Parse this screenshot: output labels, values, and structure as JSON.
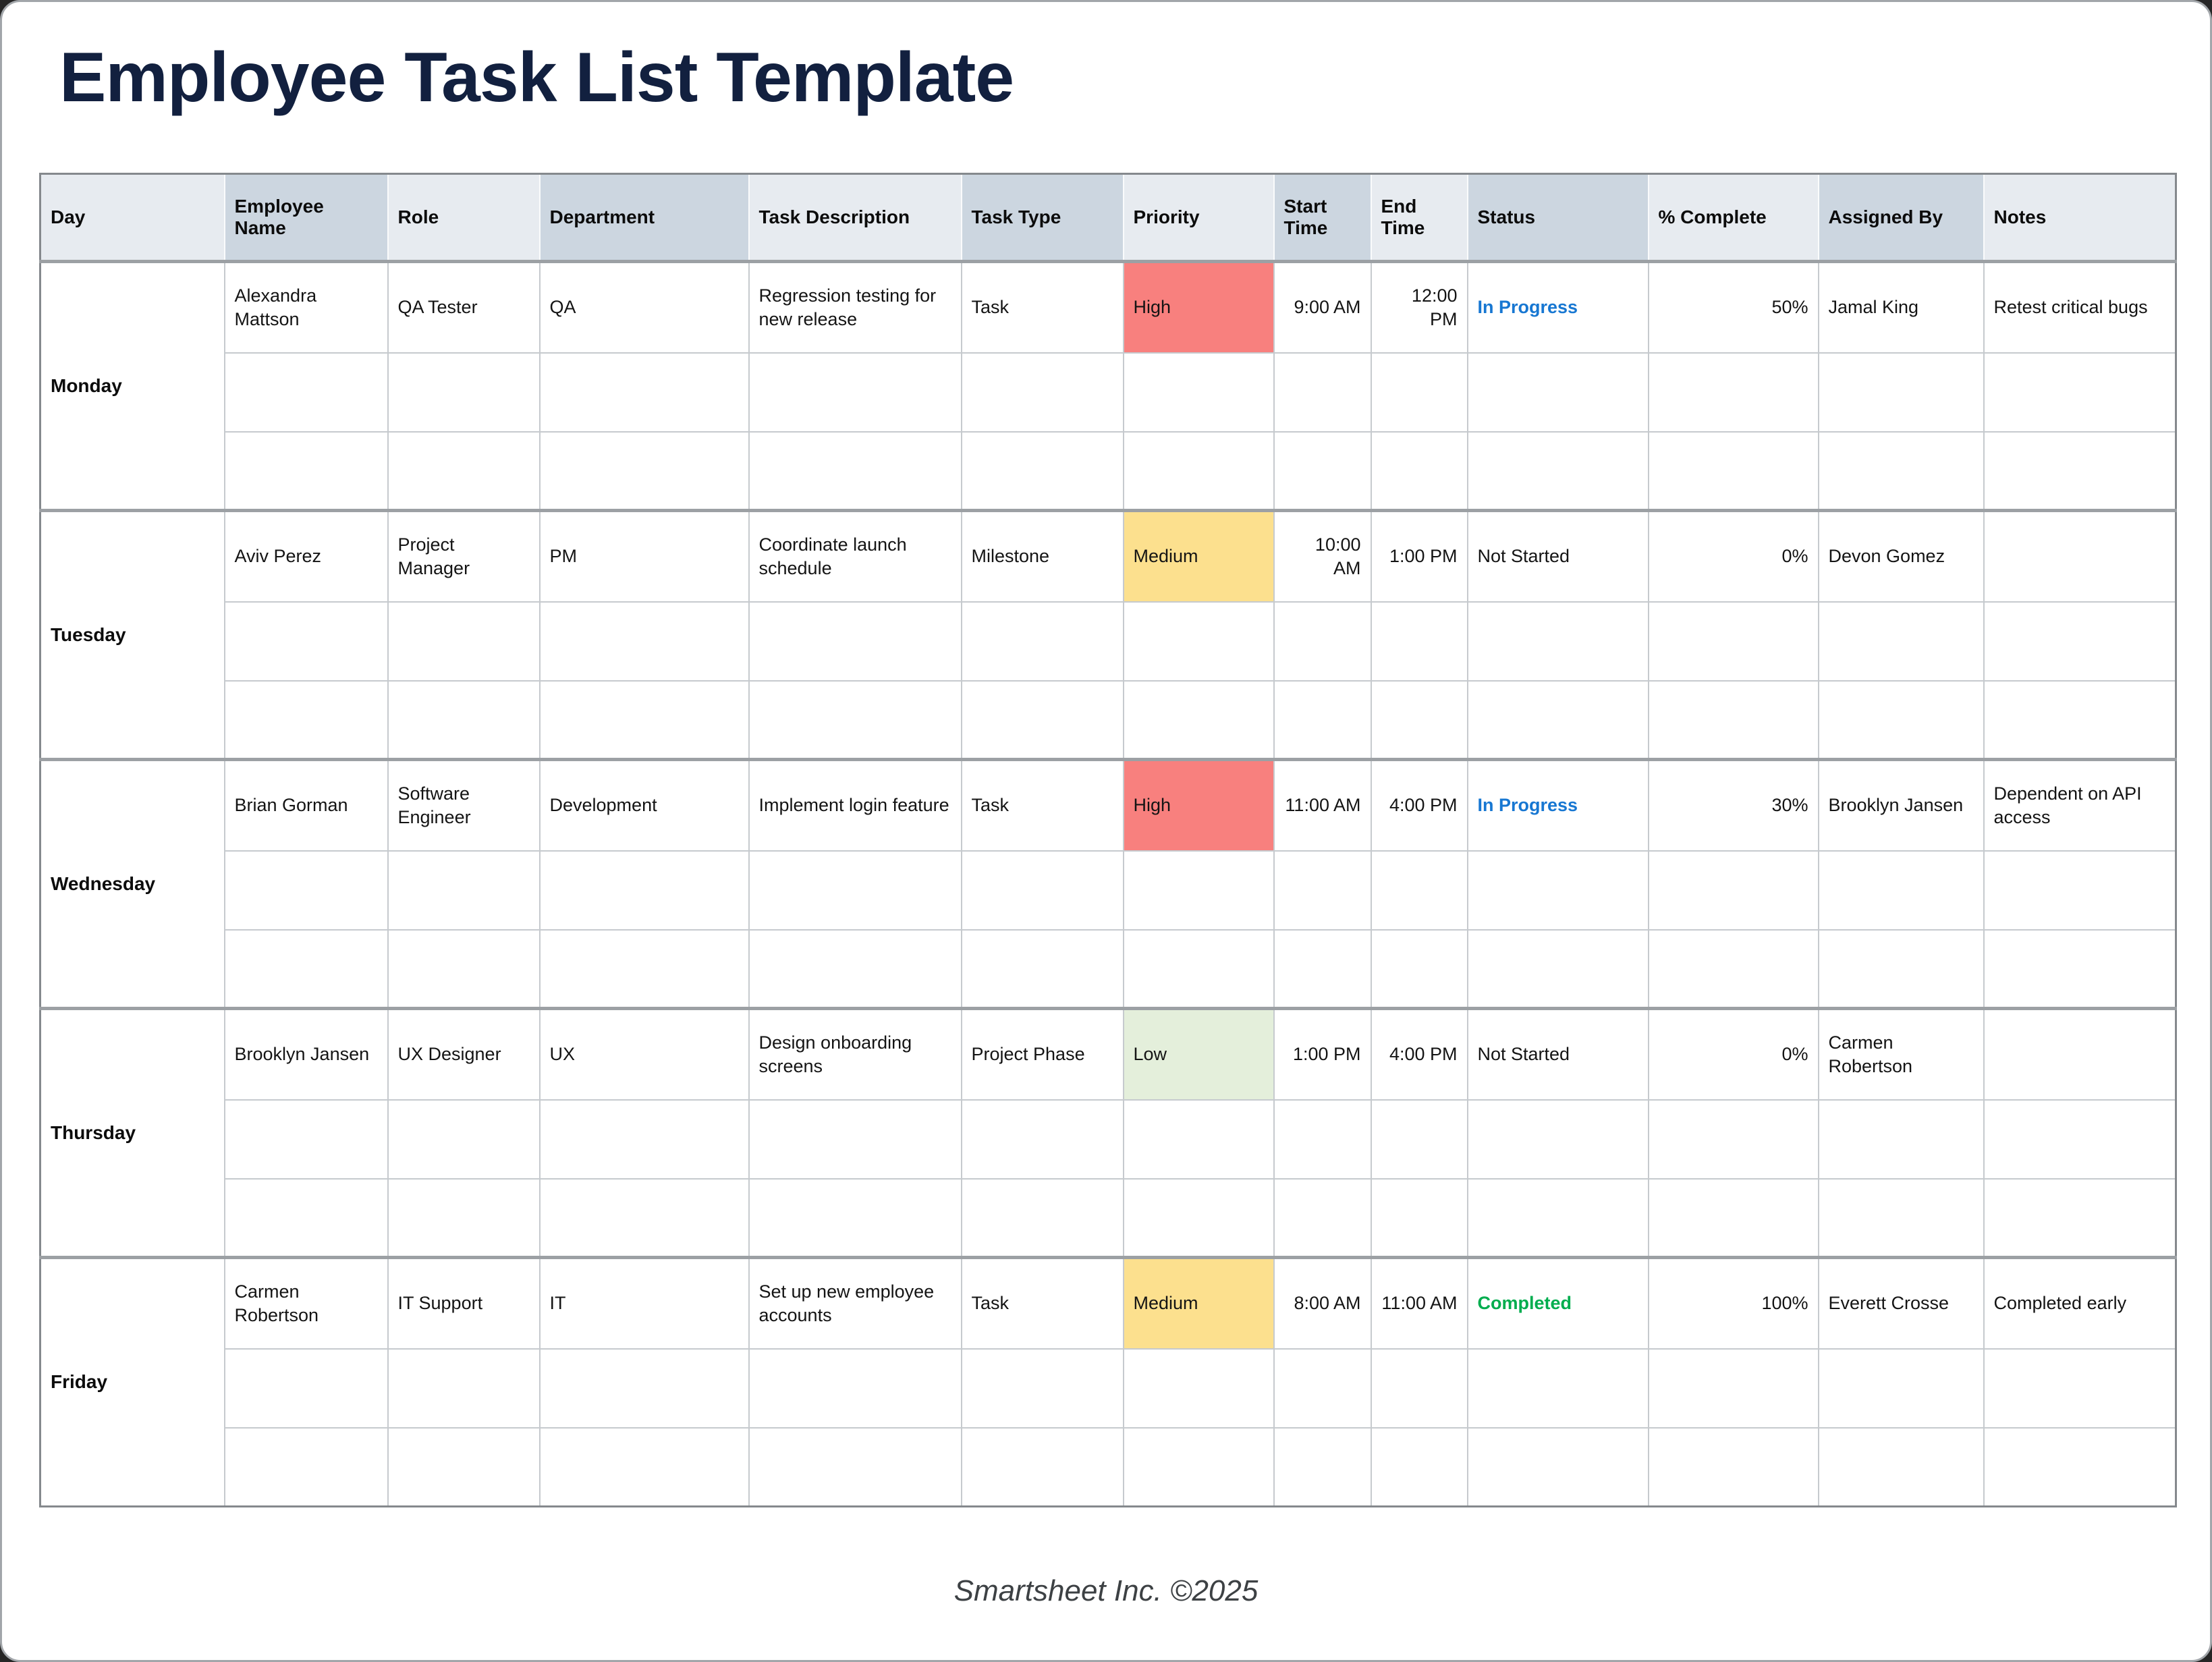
{
  "title": "Employee Task List Template",
  "footer": "Smartsheet Inc. ©2025",
  "colors": {
    "title": "#12203f",
    "table_border": "#85898d",
    "grid_line": "#c6cace",
    "block_line": "#9ca0a4",
    "header_light": "#e7ebf0",
    "header_dark": "#ccd6e0",
    "priority_high": "#f8807e",
    "priority_medium": "#fce08e",
    "priority_low": "#e4efdb",
    "status_in_progress": "#1777d2",
    "status_completed": "#00ad4e",
    "footer_text": "#3d4144"
  },
  "table": {
    "columns": [
      "Day",
      "Employee Name",
      "Role",
      "Department",
      "Task Description",
      "Task Type",
      "Priority",
      "Start Time",
      "End Time",
      "Status",
      "% Complete",
      "Assigned By",
      "Notes"
    ],
    "days": [
      {
        "day": "Monday",
        "rows": [
          {
            "employee": "Alexandra Mattson",
            "role": "QA Tester",
            "department": "QA",
            "task_description": "Regression testing for new release",
            "task_type": "Task",
            "priority": "High",
            "priority_level": "high",
            "start_time": "9:00 AM",
            "end_time": "12:00 PM",
            "status": "In Progress",
            "status_key": "in-progress",
            "percent_complete": "50%",
            "assigned_by": "Jamal King",
            "notes": "Retest critical bugs"
          },
          {},
          {}
        ]
      },
      {
        "day": "Tuesday",
        "rows": [
          {
            "employee": "Aviv Perez",
            "role": "Project Manager",
            "department": "PM",
            "task_description": "Coordinate launch schedule",
            "task_type": "Milestone",
            "priority": "Medium",
            "priority_level": "medium",
            "start_time": "10:00 AM",
            "end_time": "1:00 PM",
            "status": "Not Started",
            "status_key": "not-started",
            "percent_complete": "0%",
            "assigned_by": "Devon Gomez",
            "notes": ""
          },
          {},
          {}
        ]
      },
      {
        "day": "Wednesday",
        "rows": [
          {
            "employee": "Brian Gorman",
            "role": "Software Engineer",
            "department": "Development",
            "task_description": "Implement login feature",
            "task_type": "Task",
            "priority": "High",
            "priority_level": "high",
            "start_time": "11:00 AM",
            "end_time": "4:00 PM",
            "status": "In Progress",
            "status_key": "in-progress",
            "percent_complete": "30%",
            "assigned_by": "Brooklyn Jansen",
            "notes": "Dependent on API access"
          },
          {},
          {}
        ]
      },
      {
        "day": "Thursday",
        "rows": [
          {
            "employee": "Brooklyn Jansen",
            "role": "UX Designer",
            "department": "UX",
            "task_description": "Design onboarding screens",
            "task_type": "Project Phase",
            "priority": "Low",
            "priority_level": "low",
            "start_time": "1:00 PM",
            "end_time": "4:00 PM",
            "status": "Not Started",
            "status_key": "not-started",
            "percent_complete": "0%",
            "assigned_by": "Carmen Robertson",
            "notes": ""
          },
          {},
          {}
        ]
      },
      {
        "day": "Friday",
        "rows": [
          {
            "employee": "Carmen Robertson",
            "role": "IT Support",
            "department": "IT",
            "task_description": "Set up new employee accounts",
            "task_type": "Task",
            "priority": "Medium",
            "priority_level": "medium",
            "start_time": "8:00 AM",
            "end_time": "11:00 AM",
            "status": "Completed",
            "status_key": "completed",
            "percent_complete": "100%",
            "assigned_by": "Everett Crosse",
            "notes": "Completed early"
          },
          {},
          {}
        ]
      }
    ]
  }
}
